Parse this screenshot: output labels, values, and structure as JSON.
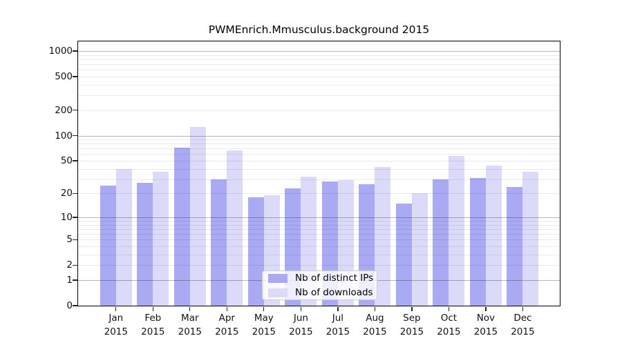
{
  "chart_data": {
    "type": "bar",
    "title": "PWMEnrich.Mmusculus.background 2015",
    "categories": [
      "Jan 2015",
      "Feb 2015",
      "Mar 2015",
      "Apr 2015",
      "May 2015",
      "Jun 2015",
      "Jul 2015",
      "Aug 2015",
      "Sep 2015",
      "Oct 2015",
      "Nov 2015",
      "Dec 2015"
    ],
    "category_months": [
      "Jan",
      "Feb",
      "Mar",
      "Apr",
      "May",
      "Jun",
      "Jul",
      "Aug",
      "Sep",
      "Oct",
      "Nov",
      "Dec"
    ],
    "category_year": "2015",
    "series": [
      {
        "name": "Nb of distinct IPs",
        "color": "#a9a9f4",
        "values": [
          25,
          27,
          72,
          30,
          18,
          23,
          28,
          26,
          15,
          30,
          31,
          24
        ]
      },
      {
        "name": "Nb of downloads",
        "color": "#dbdbf9",
        "values": [
          40,
          37,
          126,
          67,
          19,
          32,
          29,
          42,
          20,
          57,
          44,
          37
        ]
      }
    ],
    "xlabel": "",
    "ylabel": "",
    "y_scale": "log10(1+value)",
    "y_ticks": [
      0,
      1,
      2,
      5,
      10,
      20,
      50,
      100,
      200,
      500,
      1000
    ],
    "ylim": [
      0,
      1300
    ],
    "grid": {
      "minor": [
        2,
        3,
        4,
        5,
        6,
        7,
        8,
        9,
        20,
        30,
        40,
        50,
        60,
        70,
        80,
        90,
        200,
        300,
        400,
        500,
        600,
        700,
        800,
        900
      ],
      "major": [
        1,
        10,
        100,
        1000
      ]
    },
    "legend_position": "inside-bottom-center"
  }
}
